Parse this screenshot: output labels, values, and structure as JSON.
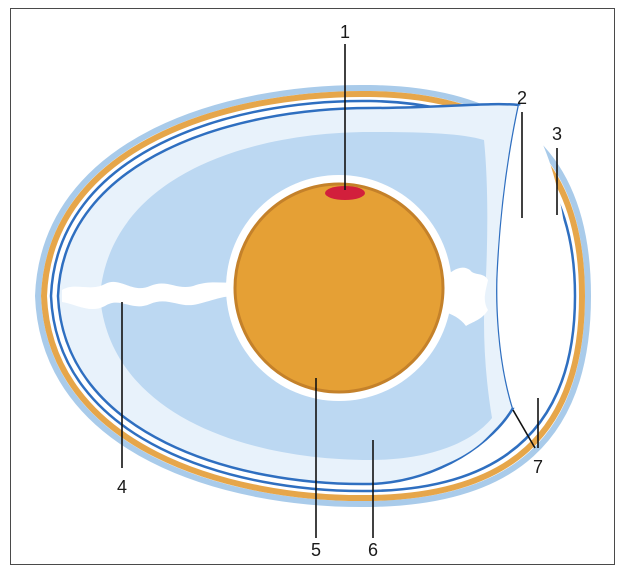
{
  "diagram": {
    "labels": {
      "one": "1",
      "two": "2",
      "three": "3",
      "four": "4",
      "five": "5",
      "six": "6",
      "seven": "7"
    },
    "colors": {
      "shell": "#e6a64a",
      "shell_edge": "#c98a2e",
      "membrane": "#2f6fc0",
      "outer_halo": "#a9cbea",
      "albumen": "#bcd8f2",
      "albumen_inner": "#e8f2fb",
      "yolk": "#e5a035",
      "yolk_edge": "#c4812a",
      "germinal_disc": "#d21f3c",
      "air_cell": "#ffffff"
    }
  }
}
